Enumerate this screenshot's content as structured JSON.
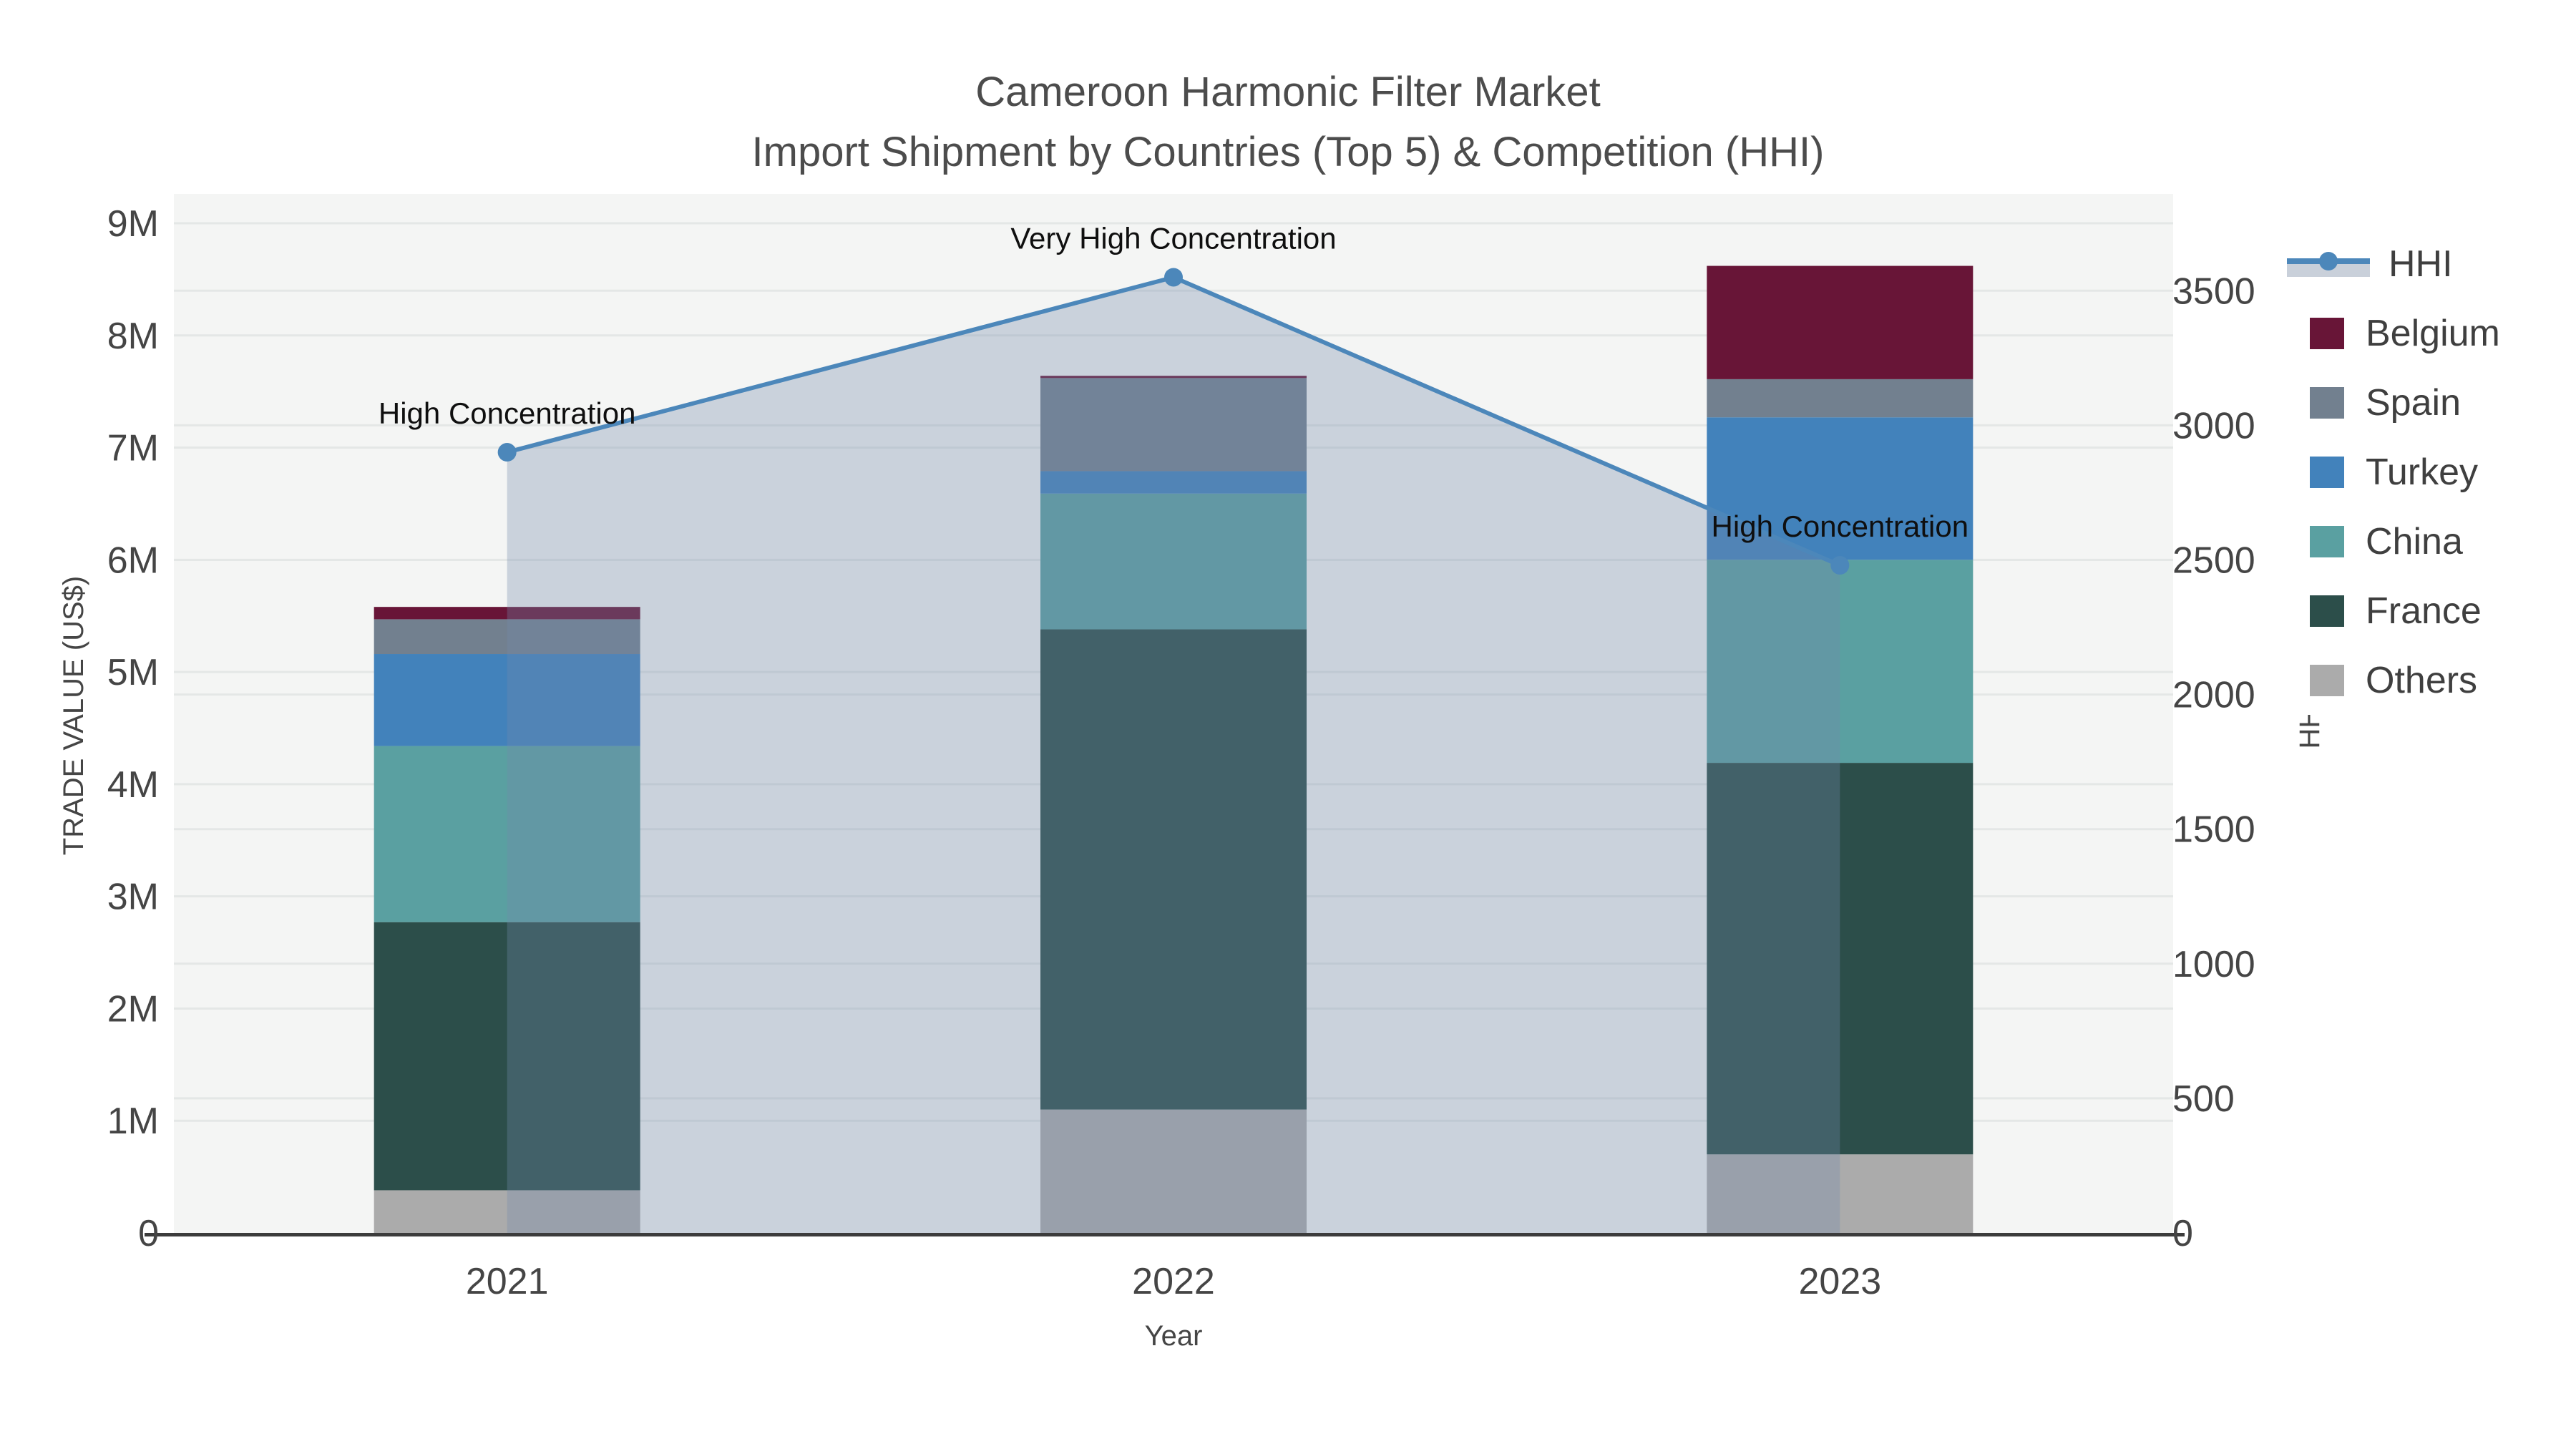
{
  "title": {
    "line1": "Cameroon Harmonic Filter Market",
    "line2": "Import Shipment by Countries (Top 5) & Competition (HHI)"
  },
  "axes": {
    "left": {
      "title": "TRADE VALUE (US$)",
      "ticks": [
        "0",
        "1M",
        "2M",
        "3M",
        "4M",
        "5M",
        "6M",
        "7M",
        "8M",
        "9M"
      ]
    },
    "right": {
      "title": "HHI",
      "ticks": [
        "0",
        "500",
        "1000",
        "1500",
        "2000",
        "2500",
        "3000",
        "3500"
      ]
    },
    "x": {
      "title": "Year",
      "ticks": [
        "2021",
        "2022",
        "2023"
      ]
    }
  },
  "legend": [
    {
      "label": "HHI",
      "type": "line",
      "color": "#4c87ba",
      "band": "#c9d0da"
    },
    {
      "label": "Belgium",
      "type": "square",
      "color": "#681537"
    },
    {
      "label": "Spain",
      "type": "square",
      "color": "#72808f"
    },
    {
      "label": "Turkey",
      "type": "square",
      "color": "#4282bb"
    },
    {
      "label": "China",
      "type": "square",
      "color": "#5aa0a1"
    },
    {
      "label": "France",
      "type": "square",
      "color": "#2c4e4a"
    },
    {
      "label": "Others",
      "type": "square",
      "color": "#ababab"
    }
  ],
  "chart_data": {
    "type": "bar+line",
    "title": "Cameroon Harmonic Filter Market - Import Shipment by Countries (Top 5) & Competition (HHI)",
    "xlabel": "Year",
    "ylabel_left": "TRADE VALUE (US$)",
    "ylabel_right": "HHI",
    "categories": [
      "2021",
      "2022",
      "2023"
    ],
    "stack_order": "bottom_to_top",
    "series": [
      {
        "name": "Others",
        "color": "#ababab",
        "values": [
          380000,
          1100000,
          700000
        ]
      },
      {
        "name": "France",
        "color": "#2c4e4a",
        "values": [
          2390000,
          4280000,
          3490000
        ]
      },
      {
        "name": "China",
        "color": "#5aa0a1",
        "values": [
          1570000,
          1210000,
          1810000
        ]
      },
      {
        "name": "Turkey",
        "color": "#4282bb",
        "values": [
          820000,
          200000,
          1270000
        ]
      },
      {
        "name": "Spain",
        "color": "#72808f",
        "values": [
          310000,
          830000,
          340000
        ]
      },
      {
        "name": "Belgium",
        "color": "#681537",
        "values": [
          110000,
          20000,
          1010000
        ]
      }
    ],
    "bar_totals": [
      5580000,
      7640000,
      8620000
    ],
    "line": {
      "name": "HHI",
      "color": "#4c87ba",
      "area_fill": "rgba(114,138,172,0.32)",
      "values": [
        2900,
        3550,
        2480
      ]
    },
    "annotations": [
      {
        "year": "2021",
        "text": "High Concentration"
      },
      {
        "year": "2022",
        "text": "Very High Concentration"
      },
      {
        "year": "2023",
        "text": "High Concentration"
      }
    ],
    "left_axis_range": [
      0,
      9260000
    ],
    "right_axis_range": [
      0,
      3860
    ],
    "grid": true,
    "legend_position": "right",
    "colors": {
      "plot_bg": "#f4f5f4",
      "grid": "#e4e7e6",
      "axis_line": "#3c3c3c"
    }
  }
}
